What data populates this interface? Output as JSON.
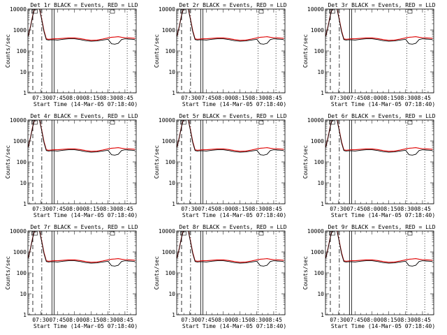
{
  "figure": {
    "xlabel": "Start Time (14-Mar-05 07:18:40)",
    "ylabel": "Counts/sec",
    "legend_text": "BLACK = Events, RED = LLD",
    "x_ticks": [
      "07:30",
      "07:45",
      "08:00",
      "08:15",
      "08:30",
      "08:45"
    ],
    "y_ticks": [
      "1",
      "10",
      "100",
      "1000",
      "10000"
    ],
    "colors": {
      "events": "#000000",
      "lld": "#e00000",
      "axes": "#000000",
      "background": "#ffffff"
    }
  },
  "panels": [
    {
      "title": "Det 1r"
    },
    {
      "title": "Det 2r"
    },
    {
      "title": "Det 3r"
    },
    {
      "title": "Det 4r"
    },
    {
      "title": "Det 5r"
    },
    {
      "title": "Det 6r"
    },
    {
      "title": "Det 7r"
    },
    {
      "title": "Det 8r"
    },
    {
      "title": "Det 9r"
    }
  ],
  "chart_data": {
    "type": "line",
    "y_scale": "log",
    "ylim": [
      1,
      10000
    ],
    "xlim": [
      "07:18:40",
      "08:55:00"
    ],
    "xlabel": "Start Time (14-Mar-05 07:18:40)",
    "ylabel": "Counts/sec",
    "series": [
      {
        "name": "Events",
        "color": "#000000",
        "x": [
          "07:19",
          "07:21",
          "07:23",
          "07:25",
          "07:27",
          "07:29",
          "07:31",
          "07:33",
          "07:35",
          "07:37",
          "07:39",
          "07:42",
          "07:45",
          "07:50",
          "07:55",
          "08:00",
          "08:05",
          "08:10",
          "08:15",
          "08:20",
          "08:25",
          "08:30",
          "08:33",
          "08:36",
          "08:39",
          "08:42",
          "08:45",
          "08:48",
          "08:51",
          "08:54"
        ],
        "values": [
          500,
          1500,
          5000,
          12000,
          13000,
          10000,
          3000,
          800,
          350,
          330,
          340,
          340,
          330,
          360,
          380,
          380,
          350,
          310,
          290,
          300,
          330,
          360,
          220,
          210,
          230,
          350,
          380,
          370,
          360,
          350
        ]
      },
      {
        "name": "LLD",
        "color": "#e00000",
        "x": [
          "07:19",
          "07:21",
          "07:23",
          "07:25",
          "07:27",
          "07:29",
          "07:31",
          "07:33",
          "07:35",
          "07:37",
          "07:39",
          "07:42",
          "07:45",
          "07:50",
          "07:55",
          "08:00",
          "08:05",
          "08:10",
          "08:15",
          "08:20",
          "08:25",
          "08:30",
          "08:33",
          "08:36",
          "08:39",
          "08:42",
          "08:45",
          "08:48",
          "08:51",
          "08:54"
        ],
        "values": [
          520,
          1550,
          5200,
          12500,
          13500,
          10500,
          3200,
          900,
          380,
          360,
          370,
          380,
          380,
          400,
          420,
          420,
          390,
          350,
          320,
          330,
          370,
          420,
          450,
          460,
          480,
          450,
          430,
          420,
          410,
          400
        ]
      }
    ],
    "vlines": [
      {
        "x": "07:23",
        "style": "dashed"
      },
      {
        "x": "07:31",
        "style": "dashdot"
      },
      {
        "x": "07:40",
        "style": "solid"
      },
      {
        "x": "07:42",
        "style": "solid"
      },
      {
        "x": "08:31",
        "style": "dotted"
      },
      {
        "x": "08:47",
        "style": "dotted"
      }
    ]
  }
}
